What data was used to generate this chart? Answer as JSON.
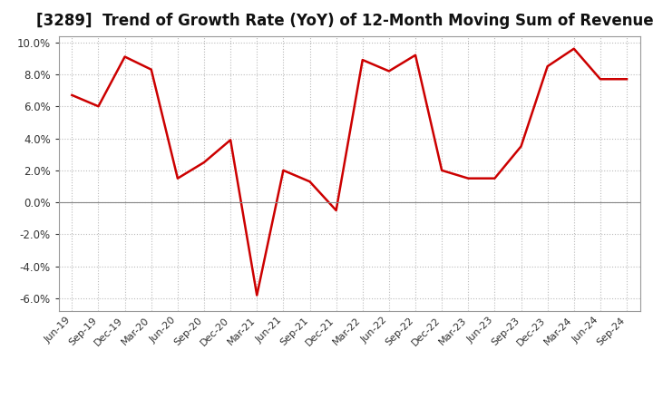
{
  "title": "[3289]  Trend of Growth Rate (YoY) of 12-Month Moving Sum of Revenues",
  "line_color": "#cc0000",
  "background_color": "#ffffff",
  "grid_color": "#bbbbbb",
  "ylim": [
    -0.068,
    0.104
  ],
  "yticks": [
    -0.06,
    -0.04,
    -0.02,
    0.0,
    0.02,
    0.04,
    0.06,
    0.08,
    0.1
  ],
  "labels": [
    "Jun-19",
    "Sep-19",
    "Dec-19",
    "Mar-20",
    "Jun-20",
    "Sep-20",
    "Dec-20",
    "Mar-21",
    "Jun-21",
    "Sep-21",
    "Dec-21",
    "Mar-22",
    "Jun-22",
    "Sep-22",
    "Dec-22",
    "Mar-23",
    "Jun-23",
    "Sep-23",
    "Dec-23",
    "Mar-24",
    "Jun-24",
    "Sep-24"
  ],
  "values": [
    0.067,
    0.06,
    0.091,
    0.083,
    0.015,
    0.025,
    0.039,
    -0.058,
    0.02,
    0.013,
    -0.005,
    0.089,
    0.082,
    0.092,
    0.02,
    0.015,
    0.015,
    0.035,
    0.085,
    0.096,
    0.077,
    0.077
  ],
  "title_fontsize": 12,
  "tick_fontsize": 8,
  "line_width": 1.8
}
